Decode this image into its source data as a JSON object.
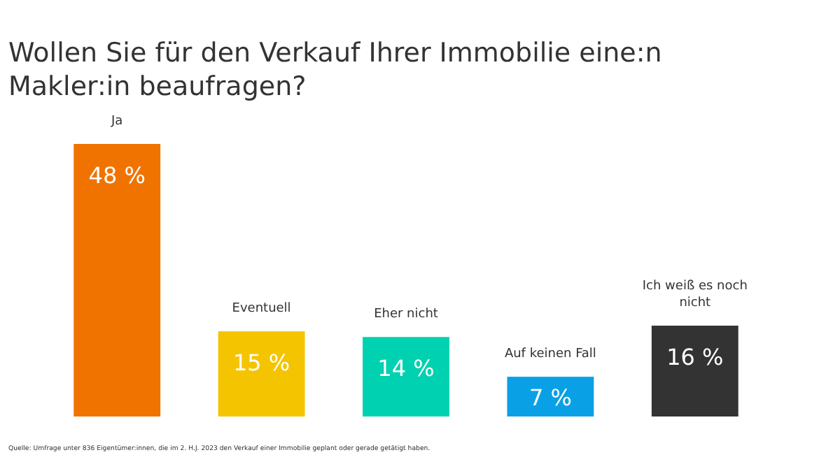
{
  "chart_data": {
    "type": "bar",
    "title": "Wollen Sie für den Verkauf Ihrer Immobilie eine:n Makler:in beaufragen?",
    "categories": [
      "Ja",
      "Eventuell",
      "Eher nicht",
      "Auf keinen Fall",
      "Ich weiß es noch nicht"
    ],
    "values": [
      48,
      15,
      14,
      7,
      16
    ],
    "value_labels": [
      "48 %",
      "15 %",
      "14 %",
      "7 %",
      "16 %"
    ],
    "colors": [
      "#f07300",
      "#f5c400",
      "#00d1b0",
      "#0aa0e6",
      "#333333"
    ],
    "annotations": [
      "Quelle: Umfrage unter 836 Eigentümer:innen, die im 2. H.J. 2023 den Verkauf einer Immobilie geplant oder gerade getätigt haben."
    ]
  }
}
